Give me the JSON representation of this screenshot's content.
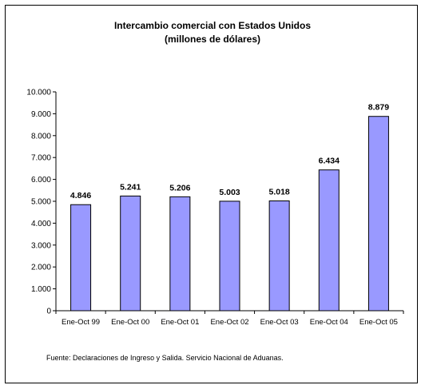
{
  "chart_data": {
    "type": "bar",
    "title": "Intercambio comercial con Estados Unidos",
    "subtitle": "(millones de dólares)",
    "xlabel": "",
    "ylabel": "",
    "categories": [
      "Ene-Oct 99",
      "Ene-Oct 00",
      "Ene-Oct 01",
      "Ene-Oct 02",
      "Ene-Oct 03",
      "Ene-Oct 04",
      "Ene-Oct 05"
    ],
    "values": [
      4846,
      5241,
      5206,
      5003,
      5018,
      6434,
      8879
    ],
    "data_labels": [
      "4.846",
      "5.241",
      "5.206",
      "5.003",
      "5.018",
      "6.434",
      "8.879"
    ],
    "ylim": [
      0,
      10000
    ],
    "yticks": [
      0,
      1000,
      2000,
      3000,
      4000,
      5000,
      6000,
      7000,
      8000,
      9000,
      10000
    ],
    "ytick_labels": [
      "0",
      "1.000",
      "2.000",
      "3.000",
      "4.000",
      "5.000",
      "6.000",
      "7.000",
      "8.000",
      "9.000",
      "10.000"
    ],
    "grid": false,
    "legend": "none",
    "bar_color": "#9999FF",
    "bar_edge_color": "#000000"
  },
  "footer": {
    "source": "Fuente: Declaraciones de Ingreso y Salida.  Servicio Nacional de Aduanas."
  }
}
